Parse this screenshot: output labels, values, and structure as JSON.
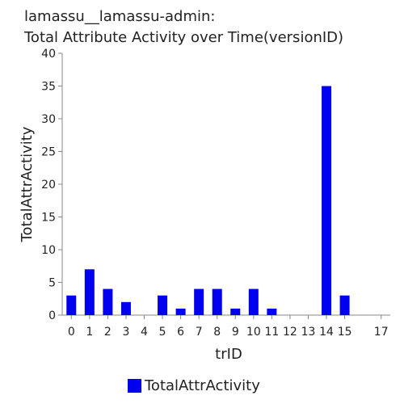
{
  "chart_data": {
    "type": "bar",
    "title": "lamassu__lamassu-admin:",
    "subtitle": "Total Attribute Activity over Time(versionID)",
    "xlabel": "trID",
    "ylabel": "TotalAttrActivity",
    "ylim": [
      0,
      40
    ],
    "yticks": [
      0,
      5,
      10,
      15,
      20,
      25,
      30,
      35,
      40
    ],
    "xticks": [
      0,
      1,
      2,
      3,
      4,
      5,
      6,
      7,
      8,
      9,
      10,
      11,
      12,
      13,
      14,
      15,
      17
    ],
    "xlim": [
      -0.5,
      17.5
    ],
    "grid": false,
    "legend_position": "bottom",
    "series": [
      {
        "name": "TotalAttrActivity",
        "color": "#0000ee",
        "points": [
          {
            "x": 0,
            "y": 3
          },
          {
            "x": 1,
            "y": 7
          },
          {
            "x": 2,
            "y": 4
          },
          {
            "x": 3,
            "y": 2
          },
          {
            "x": 5,
            "y": 3
          },
          {
            "x": 6,
            "y": 1
          },
          {
            "x": 7,
            "y": 4
          },
          {
            "x": 8,
            "y": 4
          },
          {
            "x": 9,
            "y": 1
          },
          {
            "x": 10,
            "y": 4
          },
          {
            "x": 11,
            "y": 1
          },
          {
            "x": 14,
            "y": 35
          },
          {
            "x": 15,
            "y": 3
          }
        ]
      }
    ]
  }
}
